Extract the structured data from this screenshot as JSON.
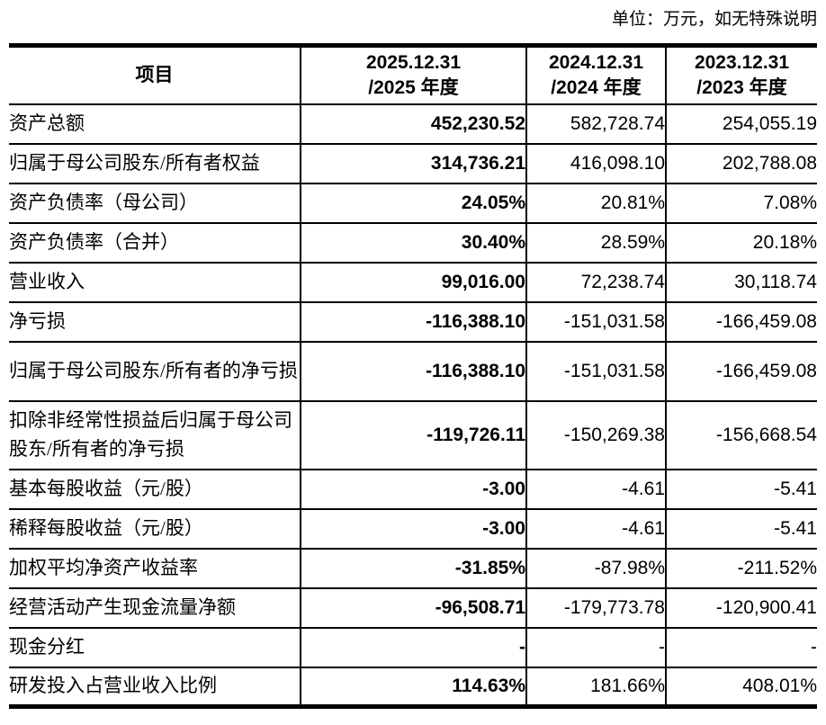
{
  "unit_note": "单位：万元，如无特殊说明",
  "table": {
    "headers": {
      "item": "项目",
      "y2025": {
        "line1": "2025.12.31",
        "line2": "/2025 年度"
      },
      "y2024": {
        "line1": "2024.12.31",
        "line2": "/2024 年度"
      },
      "y2023": {
        "line1": "2023.12.31",
        "line2": "/2023 年度"
      }
    },
    "rows": [
      {
        "label": "资产总额",
        "v2025": "452,230.52",
        "v2024": "582,728.74",
        "v2023": "254,055.19"
      },
      {
        "label": "归属于母公司股东/所有者权益",
        "v2025": "314,736.21",
        "v2024": "416,098.10",
        "v2023": "202,788.08"
      },
      {
        "label": "资产负债率（母公司）",
        "v2025": "24.05%",
        "v2024": "20.81%",
        "v2023": "7.08%"
      },
      {
        "label": "资产负债率（合并）",
        "v2025": "30.40%",
        "v2024": "28.59%",
        "v2023": "20.18%"
      },
      {
        "label": "营业收入",
        "v2025": "99,016.00",
        "v2024": "72,238.74",
        "v2023": "30,118.74"
      },
      {
        "label": "净亏损",
        "v2025": "-116,388.10",
        "v2024": "-151,031.58",
        "v2023": "-166,459.08"
      },
      {
        "label": "归属于母公司股东/所有者的净亏损",
        "v2025": "-116,388.10",
        "v2024": "-151,031.58",
        "v2023": "-166,459.08"
      },
      {
        "label": "扣除非经常性损益后归属于母公司股东/所有者的净亏损",
        "v2025": "-119,726.11",
        "v2024": "-150,269.38",
        "v2023": "-156,668.54"
      },
      {
        "label": "基本每股收益（元/股）",
        "v2025": "-3.00",
        "v2024": "-4.61",
        "v2023": "-5.41"
      },
      {
        "label": "稀释每股收益（元/股）",
        "v2025": "-3.00",
        "v2024": "-4.61",
        "v2023": "-5.41"
      },
      {
        "label": "加权平均净资产收益率",
        "v2025": "-31.85%",
        "v2024": "-87.98%",
        "v2023": "-211.52%"
      },
      {
        "label": "经营活动产生现金流量净额",
        "v2025": "-96,508.71",
        "v2024": "-179,773.78",
        "v2023": "-120,900.41"
      },
      {
        "label": "现金分红",
        "v2025": "-",
        "v2024": "-",
        "v2023": "-"
      },
      {
        "label": "研发投入占营业收入比例",
        "v2025": "114.63%",
        "v2024": "181.66%",
        "v2023": "408.01%"
      }
    ]
  }
}
